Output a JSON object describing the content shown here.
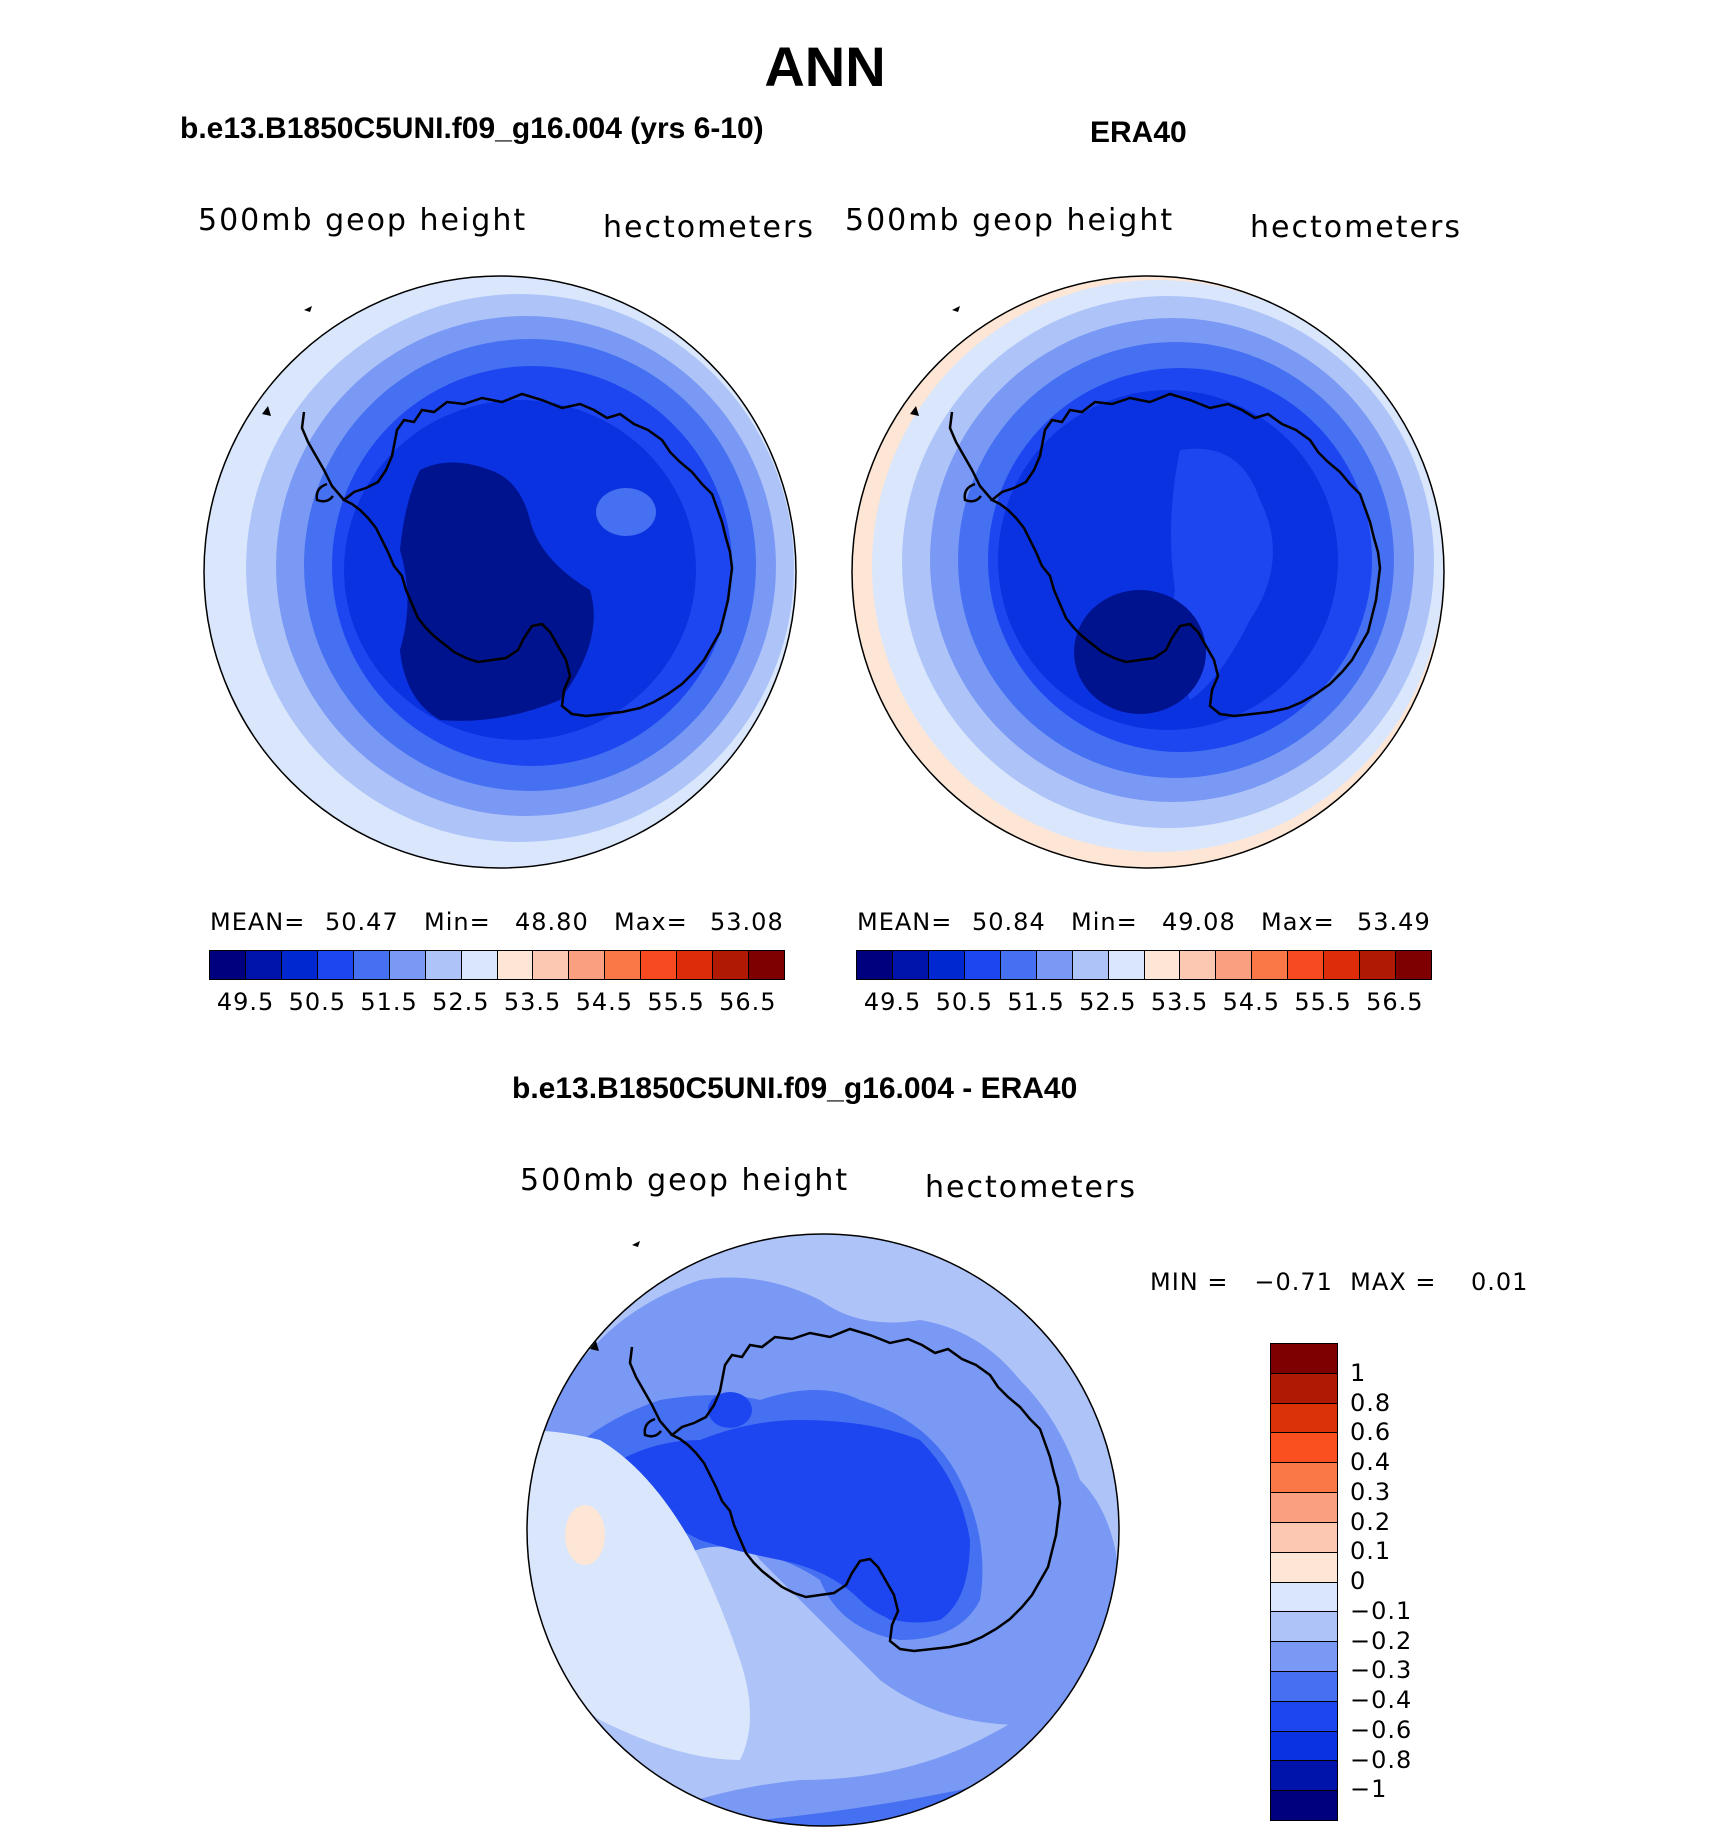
{
  "title": "ANN",
  "panel_left": {
    "subtitle": "b.e13.B1850C5UNI.f09_g16.004 (yrs 6-10)",
    "variable": "500mb geop height",
    "units": "hectometers",
    "mean_label": "MEAN=",
    "mean": "50.47",
    "min_label": "Min=",
    "min": "48.80",
    "max_label": "Max=",
    "max": "53.08"
  },
  "panel_right": {
    "subtitle": "ERA40",
    "variable": "500mb geop height",
    "units": "hectometers",
    "mean_label": "MEAN=",
    "mean": "50.84",
    "min_label": "Min=",
    "min": "49.08",
    "max_label": "Max=",
    "max": "53.49"
  },
  "panel_diff": {
    "subtitle": "b.e13.B1850C5UNI.f09_g16.004 - ERA40",
    "variable": "500mb geop height",
    "units": "hectometers",
    "minmax": "MIN =   −0.71  MAX =    0.01"
  },
  "colorbar_top": {
    "colors": [
      "#00007e",
      "#0014ac",
      "#0028d0",
      "#1e46f0",
      "#4670f2",
      "#7a99f4",
      "#aec4f8",
      "#d9e6fc",
      "#fde6d6",
      "#fcc8b2",
      "#faa080",
      "#fa7848",
      "#f84a20",
      "#dc2c0a",
      "#b01a05",
      "#7e0000"
    ],
    "ticks": [
      "49.5",
      "50.5",
      "51.5",
      "52.5",
      "53.5",
      "54.5",
      "55.5",
      "56.5"
    ]
  },
  "colorbar_diff": {
    "colors": [
      "#7e0000",
      "#b01a05",
      "#dc3208",
      "#fa5020",
      "#fa7848",
      "#faa080",
      "#fcc8b2",
      "#fde6d6",
      "#d9e6fc",
      "#aec4f8",
      "#7a99f4",
      "#4670f2",
      "#1e46f0",
      "#0a32e0",
      "#0014ac",
      "#00007e"
    ],
    "ticks": [
      "1",
      "0.8",
      "0.6",
      "0.4",
      "0.3",
      "0.2",
      "0.1",
      "0",
      "−0.1",
      "−0.2",
      "−0.3",
      "−0.4",
      "−0.6",
      "−0.8",
      "−1"
    ]
  }
}
